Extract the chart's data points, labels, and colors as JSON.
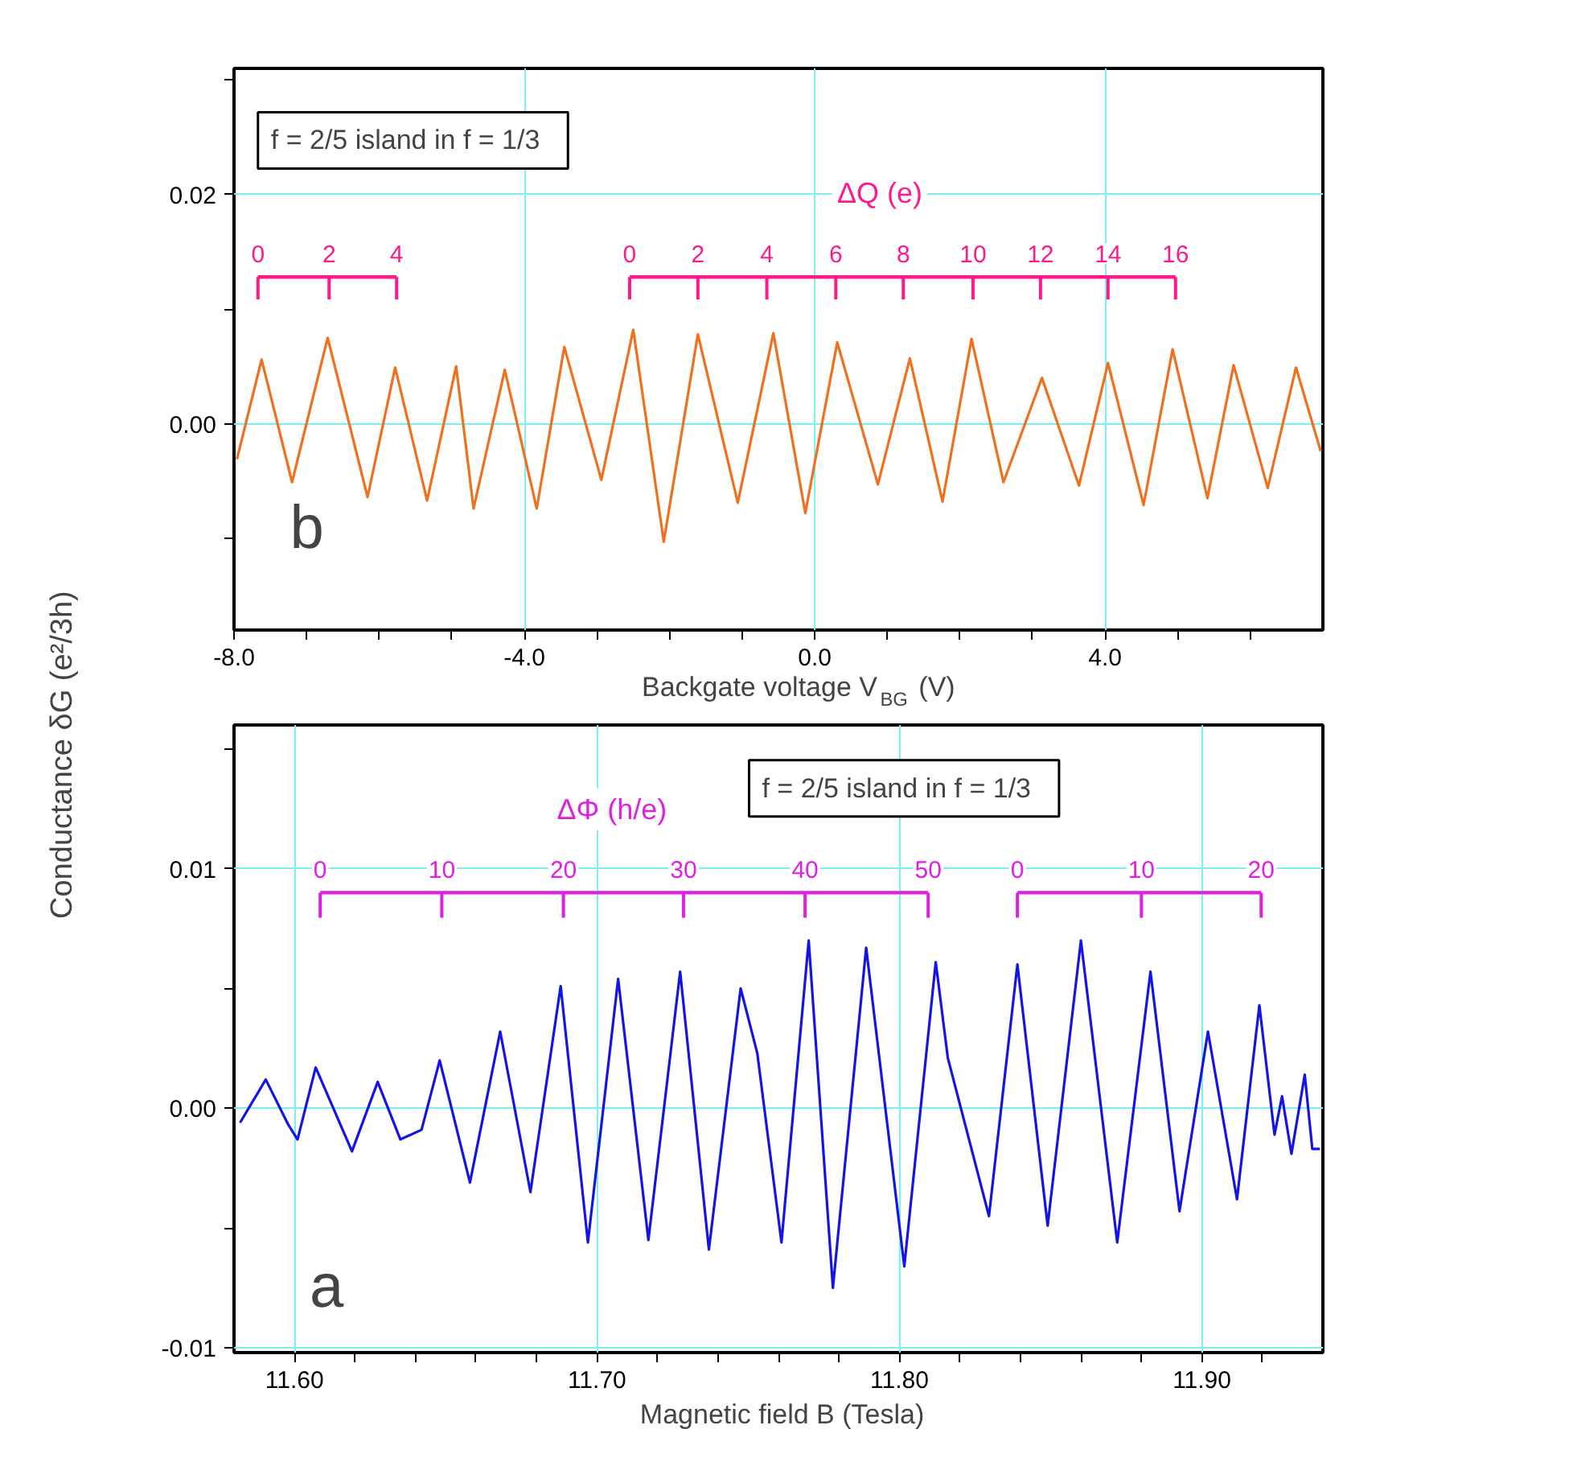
{
  "chart_data": [
    {
      "type": "line",
      "xlabel": "Backgate voltage  V$_{BG}$ (V)",
      "ylabel": "Conductance  δG (e²/3h)",
      "grid": true,
      "xlim": [
        -8.0,
        7.0
      ],
      "ylim": [
        -0.018,
        0.031
      ],
      "xticks": [
        {
          "value": -8,
          "label": "-8.0"
        },
        {
          "value": -7,
          "label": null
        },
        {
          "value": -6,
          "label": null
        },
        {
          "value": -5,
          "label": null
        },
        {
          "value": -4,
          "label": "-4.0"
        },
        {
          "value": -3,
          "label": null
        },
        {
          "value": -2,
          "label": null
        },
        {
          "value": -1,
          "label": null
        },
        {
          "value": 0,
          "label": "0.0"
        },
        {
          "value": 1,
          "label": null
        },
        {
          "value": 2,
          "label": null
        },
        {
          "value": 3,
          "label": null
        },
        {
          "value": 4,
          "label": "4.0"
        },
        {
          "value": 5,
          "label": null
        },
        {
          "value": 6,
          "label": null
        }
      ],
      "yticks": [
        {
          "value": -0.01,
          "label": null
        },
        {
          "value": 0,
          "label": "0.00"
        },
        {
          "value": 0.01,
          "label": null
        },
        {
          "value": 0.02,
          "label": "0.02"
        },
        {
          "value": 0.03,
          "label": null
        }
      ],
      "series": [
        {
          "color": "#f07020",
          "x": [
            -7.96,
            -7.62,
            -7.2,
            -6.71,
            -6.16,
            -5.78,
            -5.34,
            -4.94,
            -4.7,
            -4.27,
            -3.83,
            -3.45,
            -2.94,
            -2.5,
            -2.08,
            -1.61,
            -1.06,
            -0.57,
            -0.13,
            0.31,
            0.87,
            1.31,
            1.76,
            2.16,
            2.6,
            3.13,
            3.64,
            4.04,
            4.53,
            4.93,
            5.41,
            5.77,
            6.24,
            6.63,
            6.97
          ],
          "values": [
            -0.0031,
            0.0056,
            -0.0051,
            0.0075,
            -0.0064,
            0.0049,
            -0.0067,
            0.005,
            -0.0074,
            0.0047,
            -0.0074,
            0.0067,
            -0.0049,
            0.0082,
            -0.0103,
            0.0078,
            -0.0069,
            0.0079,
            -0.0078,
            0.0071,
            -0.0053,
            0.0057,
            -0.0068,
            0.0074,
            -0.0051,
            0.004,
            -0.0054,
            0.0053,
            -0.0071,
            0.0065,
            -0.0065,
            0.0051,
            -0.0056,
            0.0049,
            -0.0024
          ]
        },
        {
          "color": "#ff1a8c",
          "x": [
            -7.67,
            -5.76
          ],
          "values": [
            0.0128,
            0.0128
          ]
        },
        {
          "color": "#ff1a8c",
          "x": [
            -2.55,
            4.97
          ],
          "values": [
            0.0128,
            0.0128
          ]
        }
      ],
      "annotations": [
        "f = 2/5  island in  f = 1/3",
        "b",
        "ΔQ (e)",
        {
          "text": "0",
          "x": -7.67,
          "y": 0.0128
        },
        {
          "text": "2",
          "x": -6.69,
          "y": 0.0128
        },
        {
          "text": "4",
          "x": -5.76,
          "y": 0.0128
        },
        {
          "text": "0",
          "x": -2.55,
          "y": 0.0128
        },
        {
          "text": "2",
          "x": -1.61,
          "y": 0.0128
        },
        {
          "text": "4",
          "x": -0.66,
          "y": 0.0128
        },
        {
          "text": "6",
          "x": 0.29,
          "y": 0.0128
        },
        {
          "text": "8",
          "x": 1.22,
          "y": 0.0128
        },
        {
          "text": "10",
          "x": 2.18,
          "y": 0.0128
        },
        {
          "text": "12",
          "x": 3.11,
          "y": 0.0128
        },
        {
          "text": "14",
          "x": 4.04,
          "y": 0.0128
        },
        {
          "text": "16",
          "x": 4.97,
          "y": 0.0128
        }
      ]
    },
    {
      "type": "line",
      "xlabel": "Magnetic field  B  (Tesla)",
      "grid": true,
      "xlim": [
        11.58,
        11.94
      ],
      "ylim": [
        -0.0102,
        0.016
      ],
      "xticks": [
        {
          "value": 11.6,
          "label": "11.60"
        },
        {
          "value": 11.62,
          "label": null
        },
        {
          "value": 11.64,
          "label": null
        },
        {
          "value": 11.66,
          "label": null
        },
        {
          "value": 11.68,
          "label": null
        },
        {
          "value": 11.7,
          "label": "11.70"
        },
        {
          "value": 11.72,
          "label": null
        },
        {
          "value": 11.74,
          "label": null
        },
        {
          "value": 11.76,
          "label": null
        },
        {
          "value": 11.78,
          "label": null
        },
        {
          "value": 11.8,
          "label": "11.80"
        },
        {
          "value": 11.82,
          "label": null
        },
        {
          "value": 11.84,
          "label": null
        },
        {
          "value": 11.86,
          "label": null
        },
        {
          "value": 11.88,
          "label": null
        },
        {
          "value": 11.9,
          "label": "11.90"
        },
        {
          "value": 11.92,
          "label": null
        }
      ],
      "yticks": [
        {
          "value": -0.01,
          "label": "-0.01"
        },
        {
          "value": -0.005,
          "label": null
        },
        {
          "value": 0,
          "label": "0.00"
        },
        {
          "value": 0.005,
          "label": null
        },
        {
          "value": 0.01,
          "label": "0.01"
        },
        {
          "value": 0.015,
          "label": null
        }
      ],
      "series": [
        {
          "color": "#1414e6",
          "x": [
            11.582,
            11.5905,
            11.598,
            11.601,
            11.607,
            11.619,
            11.6275,
            11.635,
            11.642,
            11.648,
            11.658,
            11.668,
            11.678,
            11.688,
            11.697,
            11.707,
            11.717,
            11.7275,
            11.737,
            11.7475,
            11.753,
            11.761,
            11.77,
            11.778,
            11.789,
            11.8016,
            11.812,
            11.816,
            11.8296,
            11.839,
            11.849,
            11.86,
            11.872,
            11.883,
            11.8926,
            11.902,
            11.9116,
            11.919,
            11.924,
            11.9265,
            11.9296,
            11.934,
            11.9365,
            11.939
          ],
          "values": [
            -0.0006,
            0.0012,
            -0.0007,
            -0.0013,
            0.0017,
            -0.0018,
            0.0011,
            -0.0013,
            -0.0009,
            0.002,
            -0.0031,
            0.0032,
            -0.0035,
            0.0051,
            -0.0056,
            0.0054,
            -0.0055,
            0.0057,
            -0.0059,
            0.005,
            0.0023,
            -0.0056,
            0.007,
            -0.0075,
            0.0067,
            -0.0066,
            0.0061,
            0.0021,
            -0.0045,
            0.006,
            -0.0049,
            0.007,
            -0.0056,
            0.0057,
            -0.0043,
            0.0032,
            -0.0038,
            0.0043,
            -0.0011,
            0.0005,
            -0.0019,
            0.0014,
            -0.0017,
            -0.0017
          ]
        },
        {
          "color": "#e020e0",
          "x": [
            11.6085,
            11.8095
          ],
          "values": [
            0.009,
            0.009
          ]
        },
        {
          "color": "#e020e0",
          "x": [
            11.839,
            11.9196
          ],
          "values": [
            0.009,
            0.009
          ]
        }
      ],
      "annotations": [
        "f = 2/5  island in  f = 1/3",
        "a",
        "ΔΦ (h/e)",
        {
          "text": "0",
          "x": 11.6085,
          "y": 0.009
        },
        {
          "text": "10",
          "x": 11.6487,
          "y": 0.009
        },
        {
          "text": "20",
          "x": 11.6889,
          "y": 0.009
        },
        {
          "text": "30",
          "x": 11.7286,
          "y": 0.009
        },
        {
          "text": "40",
          "x": 11.7688,
          "y": 0.009
        },
        {
          "text": "50",
          "x": 11.8095,
          "y": 0.009
        },
        {
          "text": "0",
          "x": 11.839,
          "y": 0.009
        },
        {
          "text": "10",
          "x": 11.88,
          "y": 0.009
        },
        {
          "text": "20",
          "x": 11.9196,
          "y": 0.009
        }
      ]
    }
  ]
}
